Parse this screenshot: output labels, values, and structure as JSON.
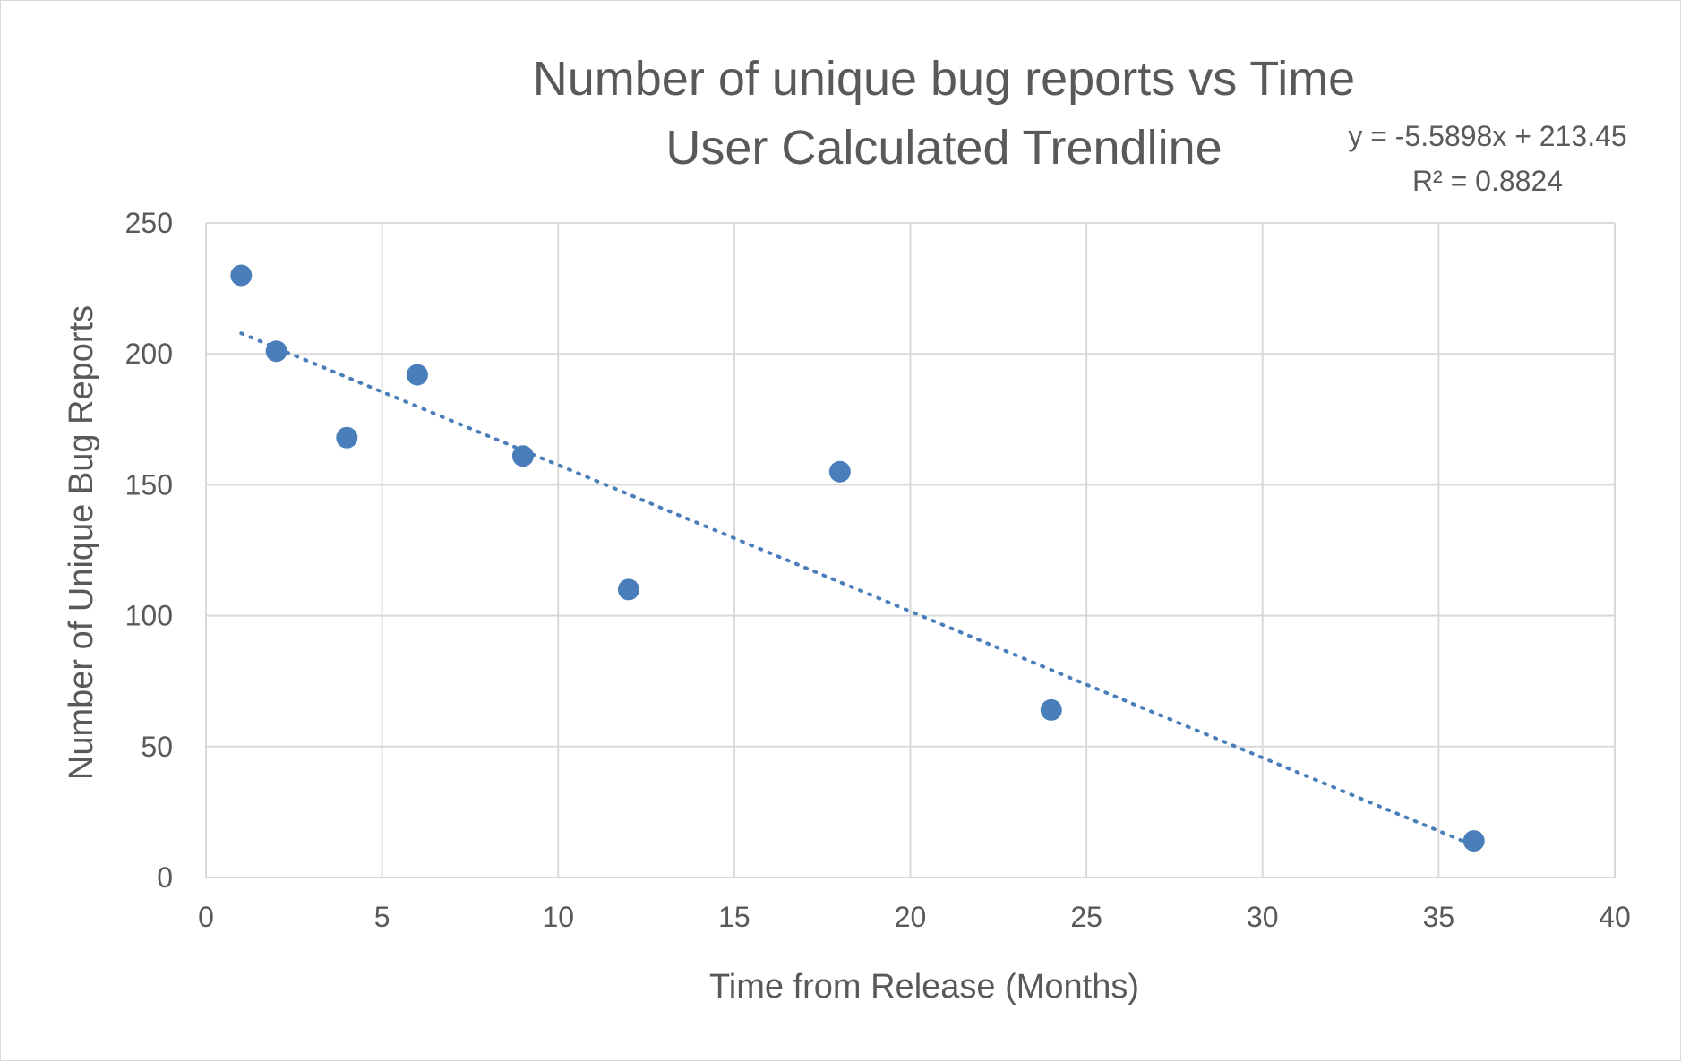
{
  "chart_data": {
    "type": "scatter",
    "title": "Number of unique bug reports vs Time",
    "subtitle": "User Calculated Trendline",
    "xlabel": "Time from Release (Months)",
    "ylabel": "Number of Unique Bug Reports",
    "xlim": [
      0,
      40
    ],
    "ylim": [
      0,
      250
    ],
    "x_ticks": [
      0,
      5,
      10,
      15,
      20,
      25,
      30,
      35,
      40
    ],
    "y_ticks": [
      0,
      50,
      100,
      150,
      200,
      250
    ],
    "grid": true,
    "series": [
      {
        "x": [
          1,
          2,
          4,
          6,
          9,
          12,
          18,
          24,
          36
        ],
        "y": [
          230,
          201,
          168,
          192,
          161,
          110,
          155,
          64,
          14
        ]
      }
    ],
    "trendline": {
      "slope": -5.5898,
      "intercept": 213.45,
      "x_range": [
        1,
        36
      ],
      "equation": "y = -5.5898x + 213.45",
      "r_squared": "R² = 0.8824"
    },
    "colors": {
      "series": "#4a7ebb",
      "grid": "#d9d9d9",
      "text": "#595959"
    }
  }
}
